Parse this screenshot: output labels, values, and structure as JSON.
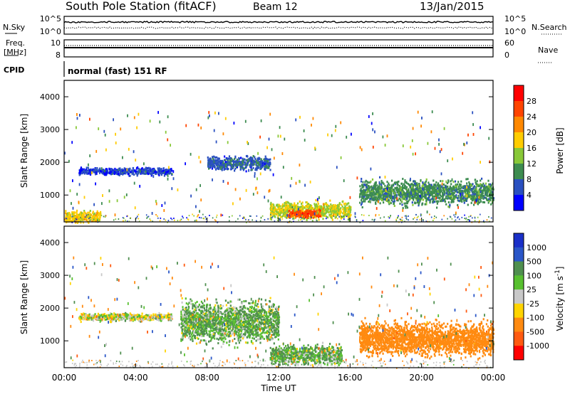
{
  "header": {
    "station": "South Pole Station (fitACF)",
    "beam": "Beam 12",
    "date": "13/Jan/2015"
  },
  "top_panels": {
    "nsky_label": "N.Sky",
    "nsearch_label": "N.Search",
    "nsky_ticks": [
      "10^5",
      "10^0"
    ],
    "nsearch_ticks": [
      "10^5",
      "10^0"
    ],
    "freq_label_line1": "Freq.",
    "freq_label_line2": "[MHz]",
    "freq_ticks": [
      "10",
      "8"
    ],
    "nave_label": "Nave",
    "nave_ticks": [
      "60",
      "0"
    ],
    "cpid_label": "CPID",
    "cpid_text": "normal (fast) 151 RF"
  },
  "power_colorbar": {
    "label": "Power [dB]",
    "ticks": [
      "28",
      "24",
      "20",
      "16",
      "12",
      "8",
      "4"
    ],
    "colors": [
      "#ff0000",
      "#ff4400",
      "#ff8800",
      "#ffcc00",
      "#88c838",
      "#3d8c50",
      "#2a50c0",
      "#0000ff"
    ]
  },
  "velocity_colorbar": {
    "label": "Velocity [m s^-1]",
    "ticks": [
      "1000",
      "500",
      "100",
      "25",
      "-25",
      "-100",
      "-500",
      "-1000"
    ],
    "colors": [
      "#1a30c8",
      "#2a56c8",
      "#4f8f4f",
      "#58c030",
      "#c8c8c8",
      "#ffd400",
      "#ff8a10",
      "#ff5a10",
      "#ff0000"
    ]
  },
  "chart_data": [
    {
      "type": "heatmap",
      "ylabel": "Slant Range [km]",
      "xlabel": "Time UT",
      "yticks": [
        "4000",
        "3000",
        "2000",
        "1000"
      ],
      "ylim": [
        180,
        4500
      ],
      "xticks": [
        "00:00",
        "04:00",
        "08:00",
        "12:00",
        "16:00",
        "20:00",
        "00:00"
      ],
      "xlim": [
        0,
        24
      ],
      "quantity": "Power [dB]",
      "echo_regions": [
        {
          "t_start": 0.8,
          "t_end": 6.0,
          "range_center": 1750,
          "range_half_width": 110,
          "value": 7
        },
        {
          "t_start": 8.0,
          "t_end": 11.5,
          "range_center": 2000,
          "range_half_width": 200,
          "value": 9
        },
        {
          "t_start": 11.5,
          "t_end": 16.0,
          "range_center": 550,
          "range_half_width": 250,
          "value": 18
        },
        {
          "t_start": 12.5,
          "t_end": 14.3,
          "range_center": 450,
          "range_half_width": 120,
          "value": 28
        },
        {
          "t_start": 16.5,
          "t_end": 24.0,
          "range_center": 1100,
          "range_half_width": 350,
          "value": 12
        },
        {
          "t_start": 0.0,
          "t_end": 2.0,
          "range_center": 350,
          "range_half_width": 200,
          "value": 20
        }
      ]
    },
    {
      "type": "heatmap",
      "ylabel": "Slant Range [km]",
      "xlabel": "Time UT",
      "yticks": [
        "4000",
        "3000",
        "2000",
        "1000"
      ],
      "ylim": [
        180,
        4500
      ],
      "xticks": [
        "00:00",
        "04:00",
        "08:00",
        "12:00",
        "16:00",
        "20:00",
        "00:00"
      ],
      "xlim": [
        0,
        24
      ],
      "quantity": "Velocity [m s^-1]",
      "echo_regions": [
        {
          "t_start": 0.8,
          "t_end": 6.0,
          "range_center": 1750,
          "range_half_width": 110,
          "value": 0
        },
        {
          "t_start": 6.5,
          "t_end": 12.0,
          "range_center": 1600,
          "range_half_width": 600,
          "value": 100
        },
        {
          "t_start": 11.5,
          "t_end": 15.5,
          "range_center": 600,
          "range_half_width": 300,
          "value": 100
        },
        {
          "t_start": 16.5,
          "t_end": 24.0,
          "range_center": 1100,
          "range_half_width": 500,
          "value": -300
        }
      ]
    }
  ]
}
